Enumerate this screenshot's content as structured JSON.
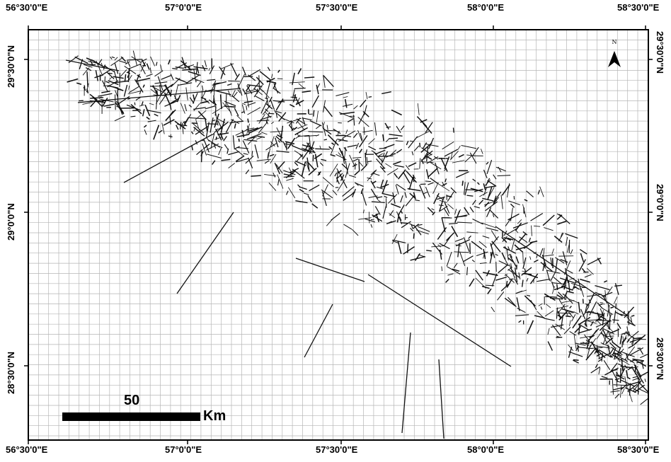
{
  "map": {
    "longitude_labels": [
      "56°30'0\"E",
      "57°0'0\"E",
      "57°30'0\"E",
      "58°0'0\"E",
      "58°30'0\"E"
    ],
    "latitude_labels": [
      "29°30'0\"N",
      "29°0'0\"N",
      "28°30'0\"N"
    ],
    "north_arrow_label": "N",
    "scale_bar": {
      "distance_label": "50",
      "unit_label": "Km"
    },
    "colors": {
      "grid": "#b5b5b5",
      "lineaments": "#111111",
      "frame": "#000000"
    }
  }
}
